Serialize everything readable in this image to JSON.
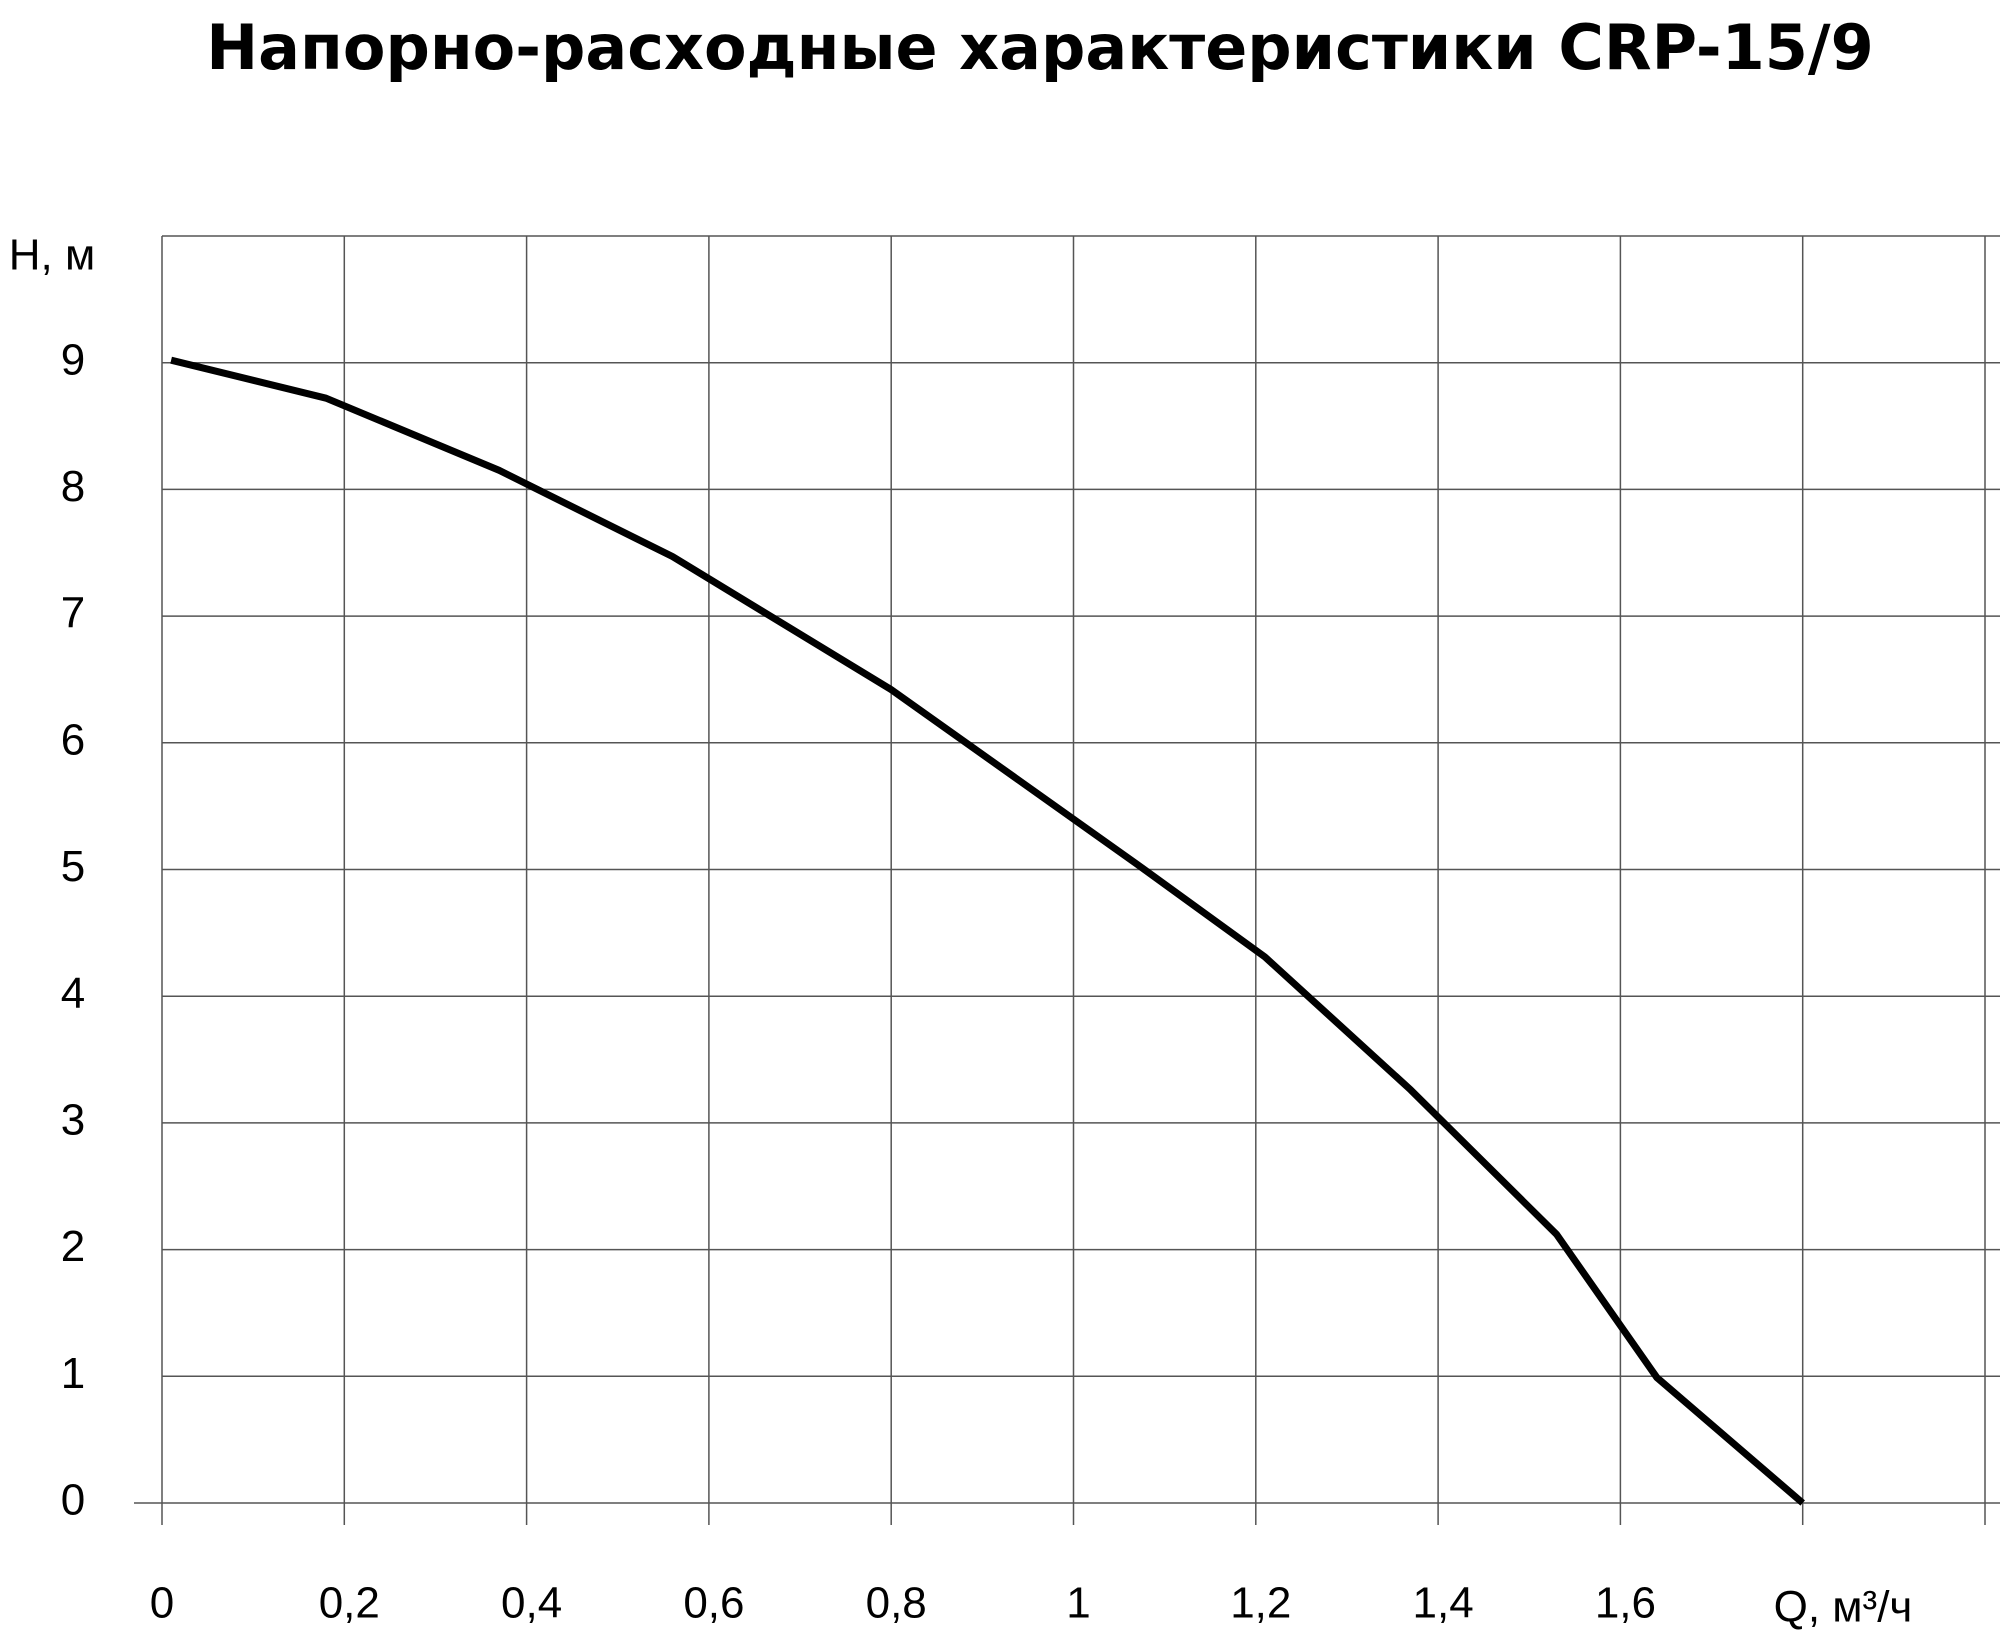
{
  "chart_data": {
    "type": "line",
    "title": "Напорно-расходные характеристики CRP-15/9",
    "y_label": "H, м",
    "x_label": "Q, м³/ч",
    "x": [
      0.01,
      0.18,
      0.37,
      0.56,
      0.8,
      1.07,
      1.21,
      1.37,
      1.53,
      1.64,
      1.8
    ],
    "series": [
      {
        "name": "CRP-15/9",
        "color": "#000000",
        "values": [
          9.02,
          8.72,
          8.15,
          7.47,
          6.42,
          5.04,
          4.31,
          3.26,
          2.12,
          0.99,
          0
        ]
      }
    ],
    "xlim": [
      0,
      2.0
    ],
    "ylim": [
      0,
      10
    ],
    "xticks": [
      0,
      {
        "value": 0.2,
        "label": "0,2"
      },
      {
        "value": 0.4,
        "label": "0,4"
      },
      {
        "value": 0.6,
        "label": "0,6"
      },
      {
        "value": 0.8,
        "label": "0,8"
      },
      1,
      {
        "value": 1.2,
        "label": "1,2"
      },
      {
        "value": 1.4,
        "label": "1,4"
      },
      {
        "value": 1.6,
        "label": "1,6"
      }
    ],
    "yticks": [
      0,
      1,
      2,
      3,
      4,
      5,
      6,
      7,
      8,
      9
    ],
    "x_gridlines": [
      0,
      0.2,
      0.4,
      0.6,
      0.8,
      1,
      1.2,
      1.4,
      1.6,
      1.8,
      2.0
    ],
    "y_gridlines": [
      0,
      1,
      2,
      3,
      4,
      5,
      6,
      7,
      8,
      9,
      10
    ],
    "grid": true
  }
}
